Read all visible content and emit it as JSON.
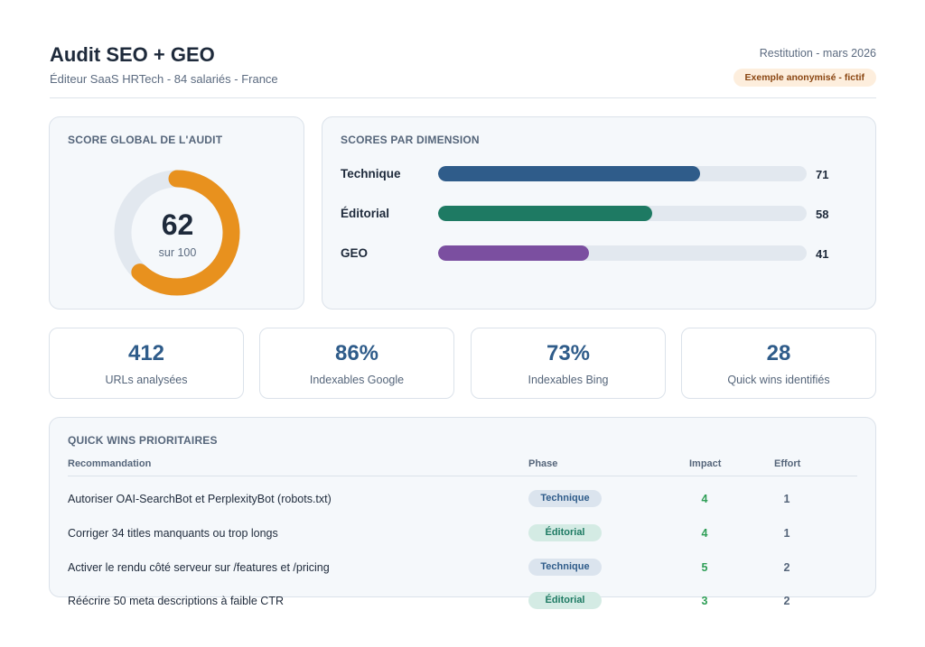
{
  "header": {
    "title": "Audit SEO + GEO",
    "subtitle": "Éditeur SaaS HRTech - 84 salariés - France",
    "date": "Restitution - mars 2026",
    "badge": "Exemple anonymisé - fictif"
  },
  "score": {
    "title": "SCORE GLOBAL DE L'AUDIT",
    "value": "62",
    "max_label": "sur 100",
    "value_num": 62,
    "max_num": 100,
    "ring_color": "#e8911e",
    "track_color": "#e2e8ef"
  },
  "dimensions": {
    "title": "SCORES PAR DIMENSION",
    "items": [
      {
        "label": "Technique",
        "value": "71",
        "score": 71,
        "color": "#2f5c8a"
      },
      {
        "label": "Éditorial",
        "value": "58",
        "score": 58,
        "color": "#1e7a63"
      },
      {
        "label": "GEO",
        "value": "41",
        "score": 41,
        "color": "#7b4fa0"
      }
    ]
  },
  "kpis": [
    {
      "value": "412",
      "label": "URLs analysées"
    },
    {
      "value": "86%",
      "label": "Indexables Google"
    },
    {
      "value": "73%",
      "label": "Indexables Bing"
    },
    {
      "value": "28",
      "label": "Quick wins identifiés"
    }
  ],
  "quick_wins": {
    "title": "QUICK WINS PRIORITAIRES",
    "headers": {
      "reco": "Recommandation",
      "phase": "Phase",
      "impact": "Impact",
      "effort": "Effort"
    },
    "rows": [
      {
        "reco": "Autoriser OAI-SearchBot et PerplexityBot (robots.txt)",
        "phase": "Technique",
        "impact": "4",
        "effort": "1"
      },
      {
        "reco": "Corriger 34 titles manquants ou trop longs",
        "phase": "Éditorial",
        "impact": "4",
        "effort": "1"
      },
      {
        "reco": "Activer le rendu côté serveur sur /features et /pricing",
        "phase": "Technique",
        "impact": "5",
        "effort": "2"
      },
      {
        "reco": "Réécrire 50 meta descriptions à faible CTR",
        "phase": "Éditorial",
        "impact": "3",
        "effort": "2"
      }
    ]
  }
}
